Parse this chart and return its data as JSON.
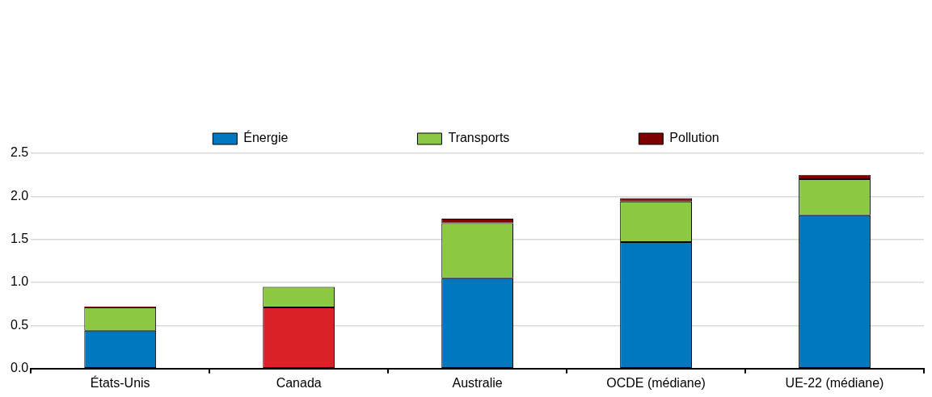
{
  "chart_data": {
    "type": "bar",
    "stacked": true,
    "categories": [
      "États-Unis",
      "Canada",
      "Australie",
      "OCDE (médiane)",
      "UE-22 (médiane)"
    ],
    "series": [
      {
        "name": "Énergie",
        "color": "#0078bf",
        "colors": [
          "#0078bf",
          "#da2128",
          "#0078bf",
          "#0078bf",
          "#0078bf"
        ],
        "values": [
          0.44,
          0.71,
          1.05,
          1.47,
          1.78
        ]
      },
      {
        "name": "Transports",
        "color": "#8cc841",
        "values": [
          0.27,
          0.24,
          0.64,
          0.47,
          0.42
        ]
      },
      {
        "name": "Pollution",
        "color": "#7f0000",
        "values": [
          0.01,
          null,
          0.05,
          0.04,
          0.05
        ]
      }
    ],
    "ylim": [
      0,
      2.5
    ],
    "yticks": [
      {
        "value": 0,
        "label": "0.0"
      },
      0.5,
      {
        "value": 1,
        "label": "1.0"
      },
      1.5,
      {
        "value": 2,
        "label": "2.0"
      },
      2.5
    ],
    "grid": "y",
    "legend": "top"
  }
}
